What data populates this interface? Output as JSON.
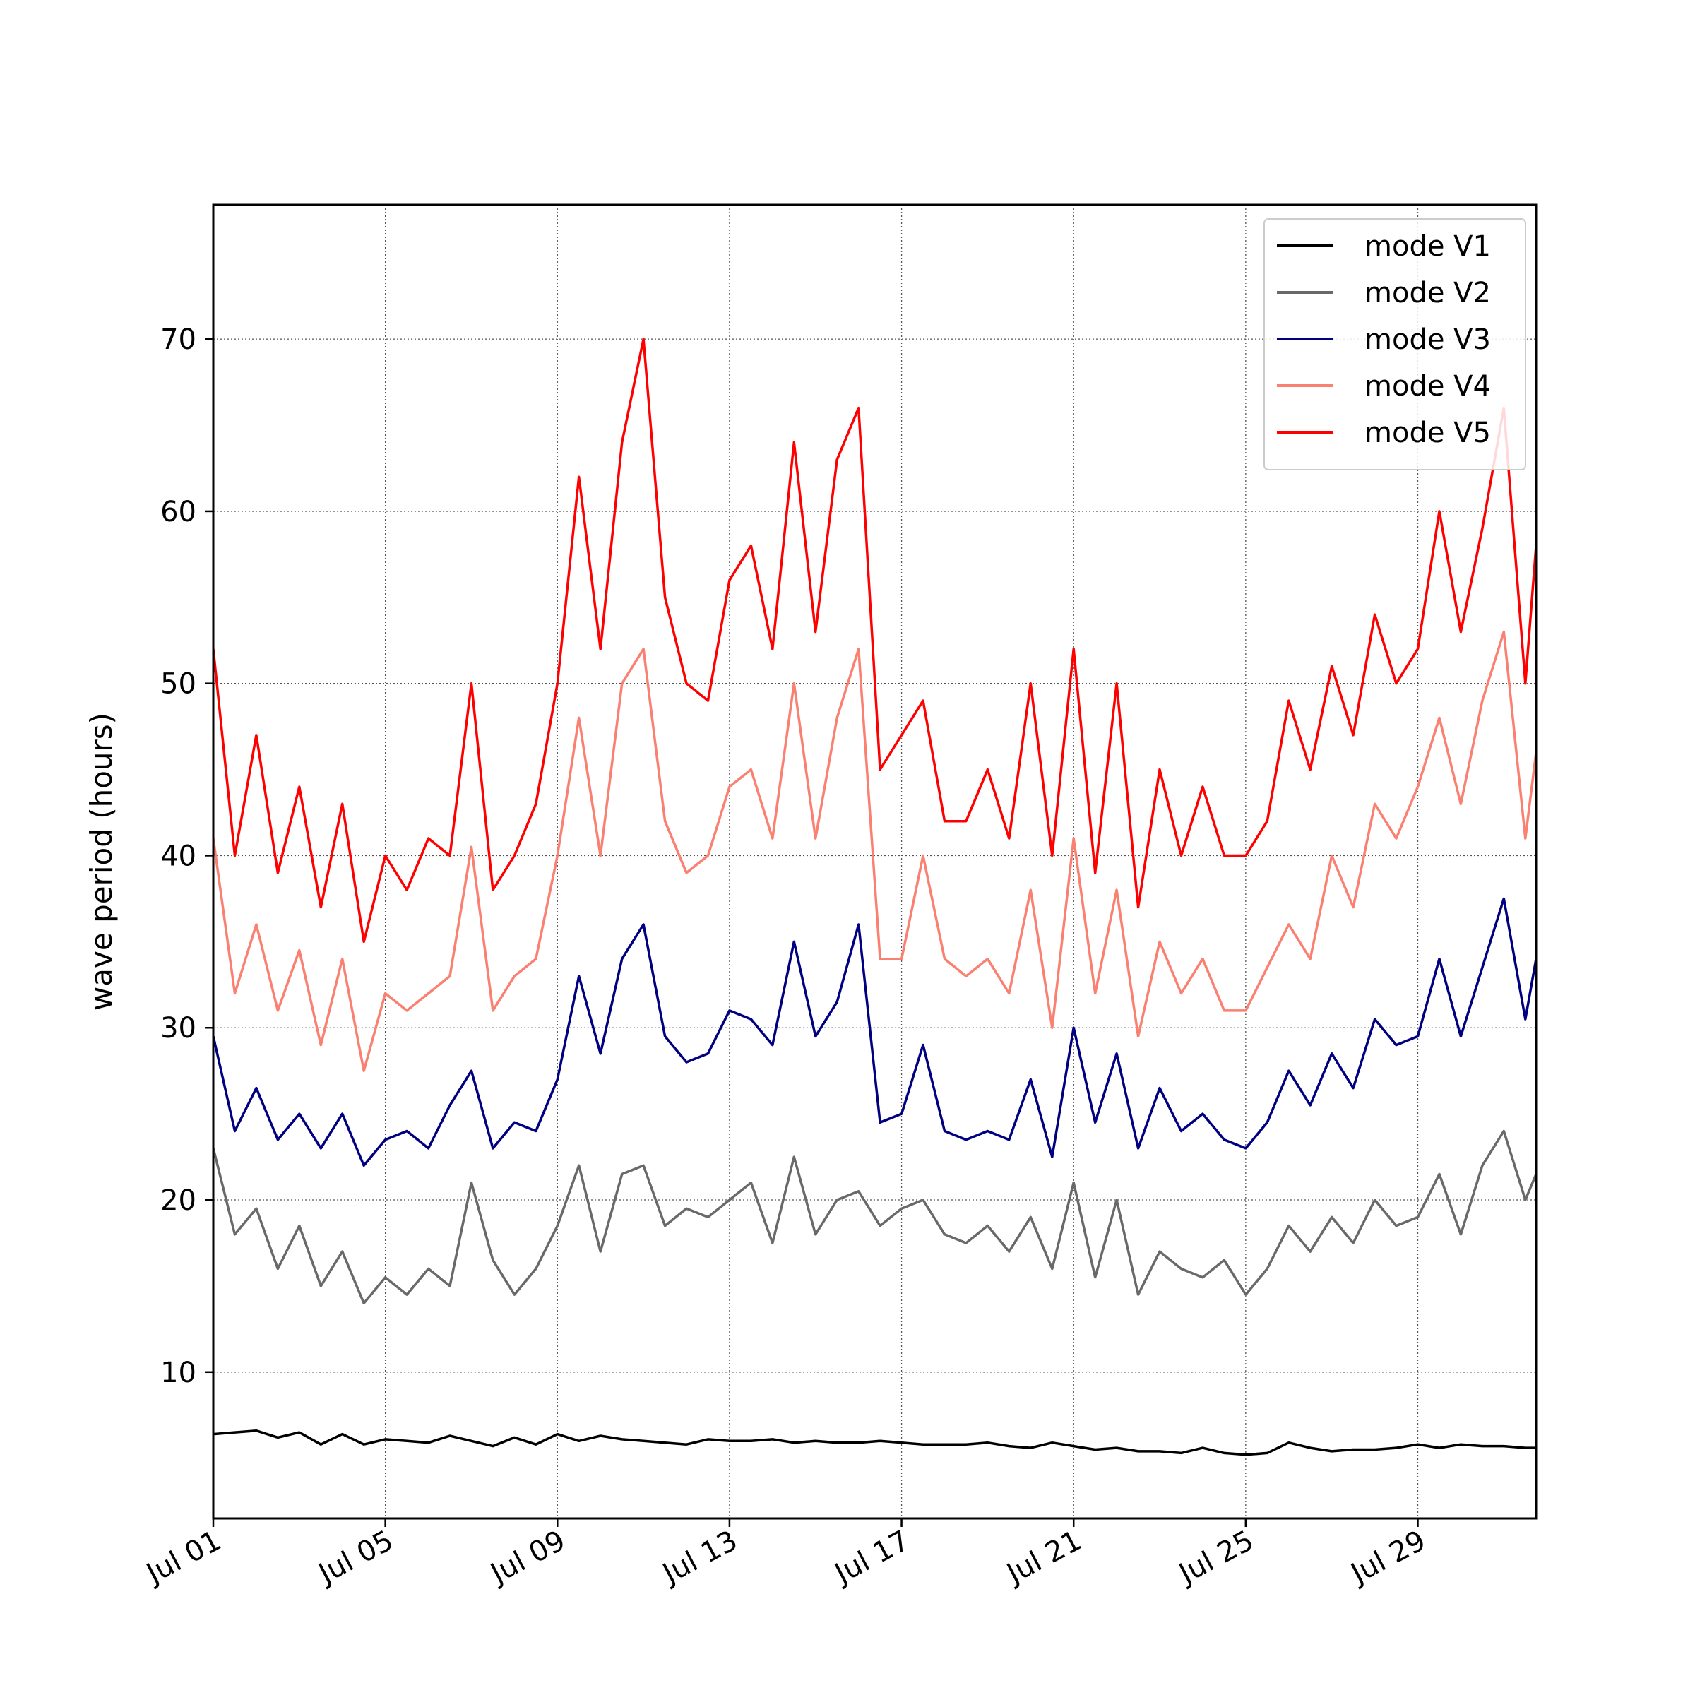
{
  "chart_data": {
    "type": "line",
    "title": "",
    "xlabel": "",
    "ylabel": "wave period (hours)",
    "x_range": [
      "2023-07-01T00:00",
      "2023-07-31T18:00"
    ],
    "x_ticks": [
      "Jul 01",
      "Jul 05",
      "Jul 09",
      "Jul 13",
      "Jul 17",
      "Jul 21",
      "Jul 25",
      "Jul 29"
    ],
    "x_tick_dates": [
      "2023-07-01",
      "2023-07-05",
      "2023-07-09",
      "2023-07-13",
      "2023-07-17",
      "2023-07-21",
      "2023-07-25",
      "2023-07-29"
    ],
    "y_ticks": [
      10,
      20,
      30,
      40,
      50,
      60,
      70
    ],
    "ylim": [
      1.5,
      77.8
    ],
    "grid": true,
    "legend_position": "top-right",
    "x": [
      "2023-07-01",
      "2023-07-01T12:00",
      "2023-07-02",
      "2023-07-02T12:00",
      "2023-07-03",
      "2023-07-03T12:00",
      "2023-07-04",
      "2023-07-04T12:00",
      "2023-07-05",
      "2023-07-05T12:00",
      "2023-07-06",
      "2023-07-06T12:00",
      "2023-07-07",
      "2023-07-07T12:00",
      "2023-07-08",
      "2023-07-08T12:00",
      "2023-07-09",
      "2023-07-09T12:00",
      "2023-07-10",
      "2023-07-10T12:00",
      "2023-07-11",
      "2023-07-11T12:00",
      "2023-07-12",
      "2023-07-12T12:00",
      "2023-07-13",
      "2023-07-13T12:00",
      "2023-07-14",
      "2023-07-14T12:00",
      "2023-07-15",
      "2023-07-15T12:00",
      "2023-07-16",
      "2023-07-16T12:00",
      "2023-07-17",
      "2023-07-17T12:00",
      "2023-07-18",
      "2023-07-18T12:00",
      "2023-07-19",
      "2023-07-19T12:00",
      "2023-07-20",
      "2023-07-20T12:00",
      "2023-07-21",
      "2023-07-21T12:00",
      "2023-07-22",
      "2023-07-22T12:00",
      "2023-07-23",
      "2023-07-23T12:00",
      "2023-07-24",
      "2023-07-24T12:00",
      "2023-07-25",
      "2023-07-25T12:00",
      "2023-07-26",
      "2023-07-26T12:00",
      "2023-07-27",
      "2023-07-27T12:00",
      "2023-07-28",
      "2023-07-28T12:00",
      "2023-07-29",
      "2023-07-29T12:00",
      "2023-07-30",
      "2023-07-30T12:00",
      "2023-07-31",
      "2023-07-31T12:00",
      "2023-07-31T18:00"
    ],
    "series": [
      {
        "name": "mode V1",
        "color": "#000000",
        "values": [
          6.4,
          6.5,
          6.6,
          6.2,
          6.5,
          5.8,
          6.4,
          5.8,
          6.1,
          6.0,
          5.9,
          6.3,
          6.0,
          5.7,
          6.2,
          5.8,
          6.4,
          6.0,
          6.3,
          6.1,
          6.0,
          5.9,
          5.8,
          6.1,
          6.0,
          6.0,
          6.1,
          5.9,
          6.0,
          5.9,
          5.9,
          6.0,
          5.9,
          5.8,
          5.8,
          5.8,
          5.9,
          5.7,
          5.6,
          5.9,
          5.7,
          5.5,
          5.6,
          5.4,
          5.4,
          5.3,
          5.6,
          5.3,
          5.2,
          5.3,
          5.9,
          5.6,
          5.4,
          5.5,
          5.5,
          5.6,
          5.8,
          5.6,
          5.8,
          5.7,
          5.7,
          5.6,
          5.6
        ]
      },
      {
        "name": "mode V2",
        "color": "#696969",
        "values": [
          23.0,
          18.0,
          19.5,
          16.0,
          18.5,
          15.0,
          17.0,
          14.0,
          15.5,
          14.5,
          16.0,
          15.0,
          21.0,
          16.5,
          14.5,
          16.0,
          18.5,
          22.0,
          17.0,
          21.5,
          22.0,
          18.5,
          19.5,
          19.0,
          20.0,
          21.0,
          17.5,
          22.5,
          18.0,
          20.0,
          20.5,
          18.5,
          19.5,
          20.0,
          18.0,
          17.5,
          18.5,
          17.0,
          19.0,
          16.0,
          21.0,
          15.5,
          20.0,
          14.5,
          17.0,
          16.0,
          15.5,
          16.5,
          14.5,
          16.0,
          18.5,
          17.0,
          19.0,
          17.5,
          20.0,
          18.5,
          19.0,
          21.5,
          18.0,
          22.0,
          24.0,
          20.0,
          21.5
        ]
      },
      {
        "name": "mode V3",
        "color": "#000080",
        "values": [
          29.5,
          24.0,
          26.5,
          23.5,
          25.0,
          23.0,
          25.0,
          22.0,
          23.5,
          24.0,
          23.0,
          25.5,
          27.5,
          23.0,
          24.5,
          24.0,
          27.0,
          33.0,
          28.5,
          34.0,
          36.0,
          29.5,
          28.0,
          28.5,
          31.0,
          30.5,
          29.0,
          35.0,
          29.5,
          31.5,
          36.0,
          24.5,
          25.0,
          29.0,
          24.0,
          23.5,
          24.0,
          23.5,
          27.0,
          22.5,
          30.0,
          24.5,
          28.5,
          23.0,
          26.5,
          24.0,
          25.0,
          23.5,
          23.0,
          24.5,
          27.5,
          25.5,
          28.5,
          26.5,
          30.5,
          29.0,
          29.5,
          34.0,
          29.5,
          33.5,
          37.5,
          30.5,
          34.0
        ]
      },
      {
        "name": "mode V4",
        "color": "#fa8072",
        "values": [
          41.0,
          32.0,
          36.0,
          31.0,
          34.5,
          29.0,
          34.0,
          27.5,
          32.0,
          31.0,
          32.0,
          33.0,
          40.5,
          31.0,
          33.0,
          34.0,
          40.0,
          48.0,
          40.0,
          50.0,
          52.0,
          42.0,
          39.0,
          40.0,
          44.0,
          45.0,
          41.0,
          50.0,
          41.0,
          48.0,
          52.0,
          34.0,
          34.0,
          40.0,
          34.0,
          33.0,
          34.0,
          32.0,
          38.0,
          30.0,
          41.0,
          32.0,
          38.0,
          29.5,
          35.0,
          32.0,
          34.0,
          31.0,
          31.0,
          33.5,
          36.0,
          34.0,
          40.0,
          37.0,
          43.0,
          41.0,
          44.0,
          48.0,
          43.0,
          49.0,
          53.0,
          41.0,
          46.0
        ]
      },
      {
        "name": "mode V5",
        "color": "#ff0000",
        "values": [
          52.0,
          40.0,
          47.0,
          39.0,
          44.0,
          37.0,
          43.0,
          35.0,
          40.0,
          38.0,
          41.0,
          40.0,
          50.0,
          38.0,
          40.0,
          43.0,
          50.0,
          62.0,
          52.0,
          64.0,
          70.0,
          55.0,
          50.0,
          49.0,
          56.0,
          58.0,
          52.0,
          64.0,
          53.0,
          63.0,
          66.0,
          45.0,
          47.0,
          49.0,
          42.0,
          42.0,
          45.0,
          41.0,
          50.0,
          40.0,
          52.0,
          39.0,
          50.0,
          37.0,
          45.0,
          40.0,
          44.0,
          40.0,
          40.0,
          42.0,
          49.0,
          45.0,
          51.0,
          47.0,
          54.0,
          50.0,
          52.0,
          60.0,
          53.0,
          59.0,
          66.0,
          50.0,
          58.0
        ]
      }
    ]
  }
}
